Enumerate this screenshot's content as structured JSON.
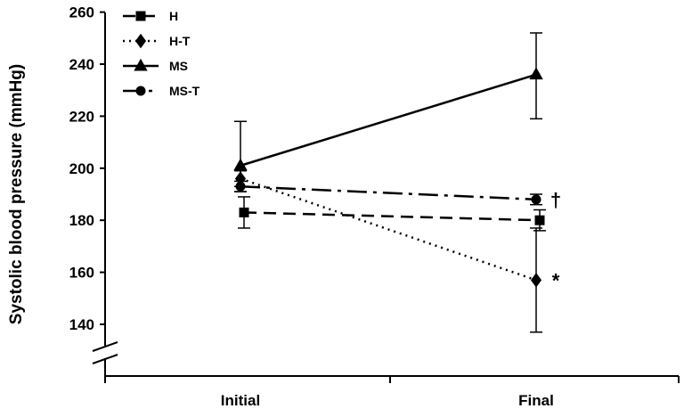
{
  "chart_data": {
    "type": "line",
    "title": "",
    "xlabel": "",
    "ylabel": "Systolic blood pressure (mmHg)",
    "categories": [
      "Initial",
      "Final"
    ],
    "ylim": [
      130,
      260
    ],
    "yticks": [
      140,
      160,
      180,
      200,
      220,
      240,
      260
    ],
    "grid": false,
    "legend": "top-left",
    "series": [
      {
        "name": "H",
        "values": [
          183,
          180
        ],
        "err_low": [
          6,
          4
        ],
        "err_high": [
          6,
          4
        ],
        "marker": "square",
        "dash": "dashed",
        "color": "#000000"
      },
      {
        "name": "H-T",
        "values": [
          196,
          157
        ],
        "err_low": [
          3,
          20
        ],
        "err_high": [
          3,
          20
        ],
        "marker": "diamond",
        "dash": "dotted",
        "color": "#000000"
      },
      {
        "name": "MS",
        "values": [
          201,
          236
        ],
        "err_low": [
          10,
          17
        ],
        "err_high": [
          17,
          16
        ],
        "marker": "triangle",
        "dash": "solid",
        "color": "#000000"
      },
      {
        "name": "MS-T",
        "values": [
          193,
          188
        ],
        "err_low": [
          2,
          2
        ],
        "err_high": [
          2,
          2
        ],
        "marker": "circle",
        "dash": "dashdot",
        "color": "#000000"
      }
    ],
    "annotations": [
      {
        "text": "†",
        "series": "MS-T",
        "category": "Final"
      },
      {
        "text": "*",
        "series": "H-T",
        "category": "Final"
      }
    ]
  }
}
